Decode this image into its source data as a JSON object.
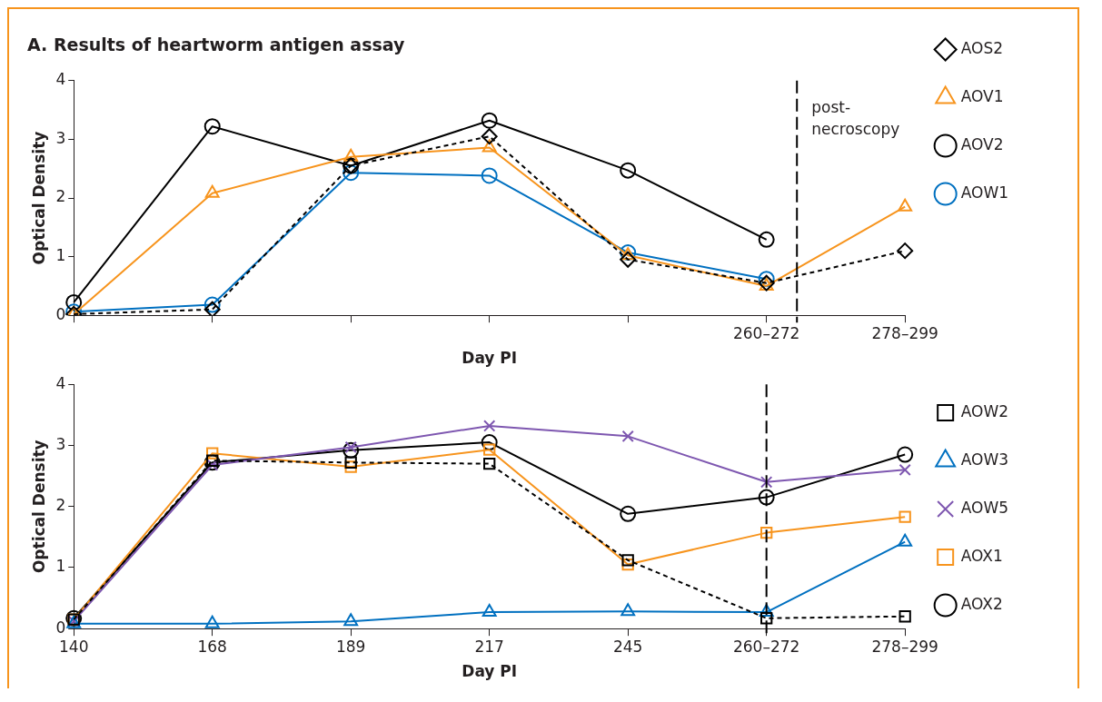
{
  "chart_data": [
    {
      "type": "line",
      "title": "A. Results of heartworm antigen assay",
      "xlabel": "Day PI",
      "ylabel": "Optical Density",
      "categories": [
        null,
        null,
        null,
        null,
        null,
        "260–272",
        "278–299"
      ],
      "ylim": [
        0,
        4
      ],
      "yticks": [
        0,
        1,
        2,
        3,
        4
      ],
      "grid": false,
      "legend": "right",
      "annotations": [
        "post-necroscopy"
      ],
      "series": [
        {
          "name": "AOS2",
          "color": "#000000",
          "marker": "diamond",
          "line_style": "dashed",
          "values": [
            0.02,
            0.1,
            2.55,
            3.05,
            0.95,
            0.55,
            1.1
          ]
        },
        {
          "name": "AOV1",
          "color": "#f7941d",
          "marker": "triangle",
          "line_style": "solid",
          "values": [
            0.02,
            2.08,
            2.7,
            2.86,
            1.02,
            0.5,
            1.85
          ]
        },
        {
          "name": "AOV2",
          "color": "#000000",
          "marker": "circle",
          "line_style": "solid",
          "values": [
            0.22,
            3.22,
            2.55,
            3.32,
            2.47,
            1.29,
            null
          ]
        },
        {
          "name": "AOW1",
          "color": "#0070c0",
          "marker": "circle",
          "line_style": "solid",
          "values": [
            0.06,
            0.18,
            2.43,
            2.38,
            1.07,
            0.62,
            null
          ]
        }
      ]
    },
    {
      "type": "line",
      "xlabel": "Day PI",
      "ylabel": "Optical Density",
      "categories": [
        "140",
        "168",
        "189",
        "217",
        "245",
        "260–272",
        "278–299"
      ],
      "ylim": [
        0,
        4
      ],
      "yticks": [
        0,
        1,
        2,
        3,
        4
      ],
      "grid": false,
      "legend": "right",
      "ref_lines": [
        {
          "axis": "x",
          "value": "260–272",
          "line_style": "dashed",
          "color": "#000000"
        }
      ],
      "series": [
        {
          "name": "AOW2",
          "color": "#000000",
          "marker": "square",
          "line_style": "dashed",
          "values": [
            0.15,
            2.75,
            2.72,
            2.7,
            1.12,
            0.17,
            0.2
          ]
        },
        {
          "name": "AOW3",
          "color": "#0070c0",
          "marker": "triangle",
          "line_style": "solid",
          "values": [
            0.08,
            0.08,
            0.12,
            0.27,
            0.28,
            0.27,
            1.42
          ]
        },
        {
          "name": "AOW5",
          "color": "#7e57b0",
          "marker": "cross",
          "line_style": "solid",
          "values": [
            0.12,
            2.68,
            2.97,
            3.32,
            3.15,
            2.4,
            2.6
          ]
        },
        {
          "name": "AOX1",
          "color": "#f7941d",
          "marker": "square",
          "line_style": "solid",
          "values": [
            0.15,
            2.87,
            2.65,
            2.93,
            1.05,
            1.57,
            1.83
          ]
        },
        {
          "name": "AOX2",
          "color": "#000000",
          "marker": "circle",
          "line_style": "solid",
          "values": [
            0.17,
            2.72,
            2.92,
            3.05,
            1.88,
            2.15,
            2.85
          ]
        }
      ]
    }
  ]
}
